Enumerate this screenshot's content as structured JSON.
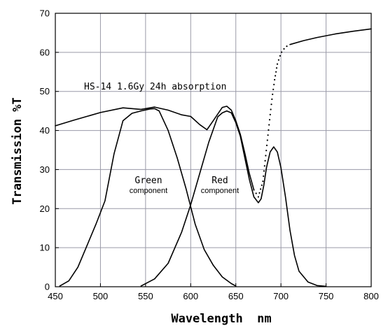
{
  "chart_data": {
    "type": "line",
    "title": "",
    "xlabel": "Wavelength  nm",
    "ylabel": "Transmission  %T",
    "xlim": [
      450,
      800
    ],
    "ylim": [
      0,
      70
    ],
    "xticks": [
      450,
      500,
      550,
      600,
      650,
      700,
      750,
      800
    ],
    "yticks": [
      0,
      10,
      20,
      30,
      40,
      50,
      60,
      70
    ],
    "grid": true,
    "annotations": [
      {
        "text": "HS-14 1.6Gy 24h absorption"
      },
      {
        "text": "Green",
        "subtext": "component"
      },
      {
        "text": "Red",
        "subtext": "component"
      }
    ],
    "series": [
      {
        "style": "solid",
        "x": [
          450,
          470,
          500,
          525,
          545,
          560,
          575,
          590,
          600,
          610,
          618,
          625,
          635,
          640,
          645,
          650,
          655,
          660,
          665,
          670
        ],
        "y": [
          41.2,
          42.6,
          44.6,
          45.8,
          45.4,
          46.0,
          45.2,
          44.0,
          43.6,
          41.5,
          40.2,
          42.5,
          45.9,
          46.2,
          45.2,
          42.5,
          39.0,
          34.2,
          29.0,
          24.8
        ]
      },
      {
        "style": "dotted",
        "x": [
          670,
          675,
          680,
          685,
          690,
          693,
          696,
          700,
          703,
          706,
          710
        ],
        "y": [
          24.8,
          23.0,
          27.0,
          37.5,
          48.0,
          53.0,
          57.0,
          59.8,
          60.8,
          61.5,
          62.0
        ]
      },
      {
        "style": "solid",
        "x": [
          710,
          725,
          740,
          760,
          780,
          800
        ],
        "y": [
          62.0,
          63.0,
          63.8,
          64.7,
          65.4,
          66.0
        ]
      },
      {
        "name": "Green component",
        "style": "solid",
        "x": [
          455,
          465,
          475,
          485,
          495,
          505,
          515,
          525,
          535,
          545,
          555,
          560,
          565,
          575,
          585,
          595,
          605,
          615,
          625,
          635,
          645,
          650
        ],
        "y": [
          0.2,
          1.5,
          5.0,
          10.5,
          16.0,
          22.0,
          34.0,
          42.5,
          44.4,
          45.0,
          45.5,
          45.6,
          45.0,
          40.0,
          33.0,
          25.0,
          16.0,
          9.5,
          5.5,
          2.5,
          0.8,
          0.2
        ]
      },
      {
        "name": "Red component",
        "style": "solid",
        "x": [
          545,
          560,
          575,
          590,
          600,
          610,
          620,
          630,
          635,
          640,
          645,
          650,
          655,
          660,
          665,
          670,
          675,
          678,
          681,
          684,
          688,
          692,
          696,
          700,
          705,
          710,
          715,
          720,
          730,
          740,
          750
        ],
        "y": [
          0.2,
          2.0,
          6.0,
          14.0,
          21.0,
          29.0,
          37.0,
          43.5,
          44.5,
          45.0,
          44.5,
          42.0,
          38.5,
          33.0,
          27.5,
          23.0,
          21.5,
          22.5,
          26.0,
          30.5,
          34.5,
          35.8,
          34.5,
          30.5,
          23.0,
          14.5,
          8.0,
          4.0,
          1.2,
          0.3,
          0.1
        ]
      }
    ]
  }
}
